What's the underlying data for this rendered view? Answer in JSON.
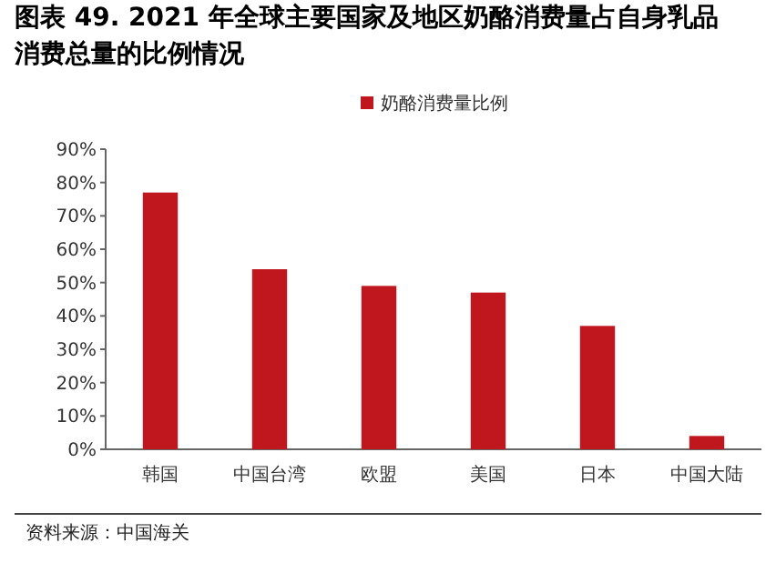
{
  "chart_data": {
    "type": "bar",
    "title": "图表 49. 2021 年全球主要国家及地区奶酪消费量占自身乳品消费总量的比例情况",
    "categories": [
      "韩国",
      "中国台湾",
      "欧盟",
      "美国",
      "日本",
      "中国大陆"
    ],
    "series": [
      {
        "name": "奶酪消费量比例",
        "color": "#c0171f",
        "values": [
          77,
          54,
          49,
          47,
          37,
          4
        ]
      }
    ],
    "ylim": [
      0,
      90
    ],
    "yticks": [
      {
        "value": 0,
        "label": "0%"
      },
      {
        "value": 10,
        "label": "10%"
      },
      {
        "value": 20,
        "label": "20%"
      },
      {
        "value": 30,
        "label": "30%"
      },
      {
        "value": 40,
        "label": "40%"
      },
      {
        "value": 50,
        "label": "50%"
      },
      {
        "value": 60,
        "label": "60%"
      },
      {
        "value": 70,
        "label": "70%"
      },
      {
        "value": 80,
        "label": "80%"
      },
      {
        "value": 90,
        "label": "90%"
      }
    ],
    "legend": "top",
    "grid": false,
    "annotations": [
      "资料来源：中国海关"
    ]
  }
}
